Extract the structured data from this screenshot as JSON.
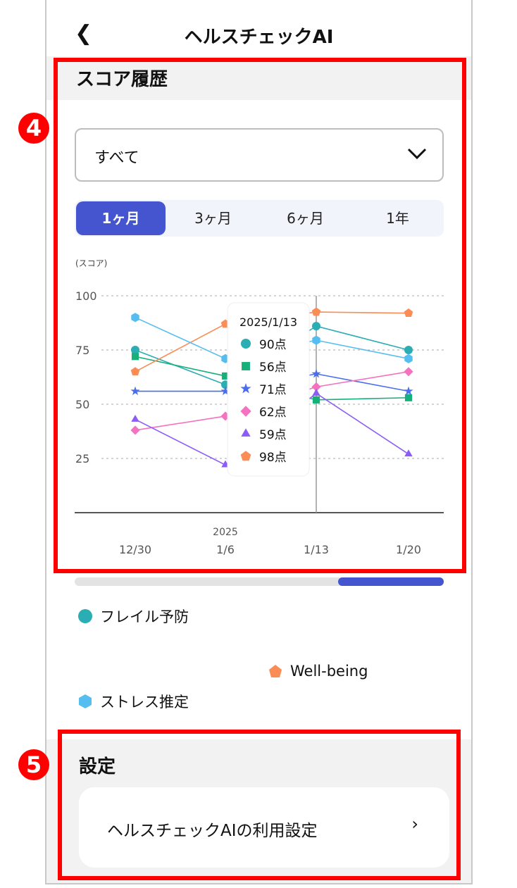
{
  "header": {
    "title": "ヘルスチェックAI",
    "back_icon": "chevron-left-icon"
  },
  "history": {
    "title": "スコア履歴",
    "dropdown_value": "すべて",
    "periods": [
      "1ヶ月",
      "3ヶ月",
      "6ヶ月",
      "1年"
    ],
    "active_period": "1ヶ月"
  },
  "chart_data": {
    "type": "line",
    "ylabel": "(スコア)",
    "ylim": [
      0,
      100
    ],
    "yticks": [
      25,
      50,
      75,
      100
    ],
    "grid": "horizontal dashed",
    "x": [
      "12/30",
      "1/6",
      "1/13",
      "1/20"
    ],
    "x_year_label": "2025",
    "series": [
      {
        "name": "フレイル予防",
        "marker": "circle",
        "color": "#2aadb3",
        "values": [
          75,
          59,
          86,
          75
        ]
      },
      {
        "marker": "square",
        "color": "#17b07a",
        "values": [
          72,
          63,
          52,
          53
        ]
      },
      {
        "marker": "star",
        "color": "#4a6cf0",
        "values": [
          56,
          56,
          64,
          56
        ]
      },
      {
        "marker": "diamond",
        "color": "#f472c0",
        "values": [
          38,
          44.5,
          58,
          65
        ]
      },
      {
        "marker": "triangle",
        "color": "#8b5cf6",
        "values": [
          43,
          22,
          55,
          27
        ]
      },
      {
        "name": "Well-being",
        "marker": "pentagon",
        "color": "#fb8c55",
        "values": [
          65,
          87,
          92.5,
          92
        ]
      },
      {
        "name": "ストレス推定",
        "marker": "hexagon",
        "color": "#56bdf0",
        "values": [
          90,
          71,
          79.5,
          71
        ]
      }
    ],
    "tooltip": {
      "title": "2025/1/13",
      "items": [
        "90点",
        "56点",
        "71点",
        "62点",
        "59点",
        "98点"
      ]
    }
  },
  "scroll_progress": 0.72,
  "legend": [
    {
      "label": "フレイル予防",
      "color": "#2aadb3"
    },
    {
      "label": "Well-being",
      "color": "#fb8c55"
    },
    {
      "label": "ストレス推定",
      "color": "#56bdf0"
    }
  ],
  "settings": {
    "title": "設定",
    "item": "ヘルスチェックAIの利用設定"
  },
  "annotations": [
    "4",
    "5"
  ],
  "colors": {
    "accent": "#4455cf",
    "annotation": "#ff0000"
  }
}
